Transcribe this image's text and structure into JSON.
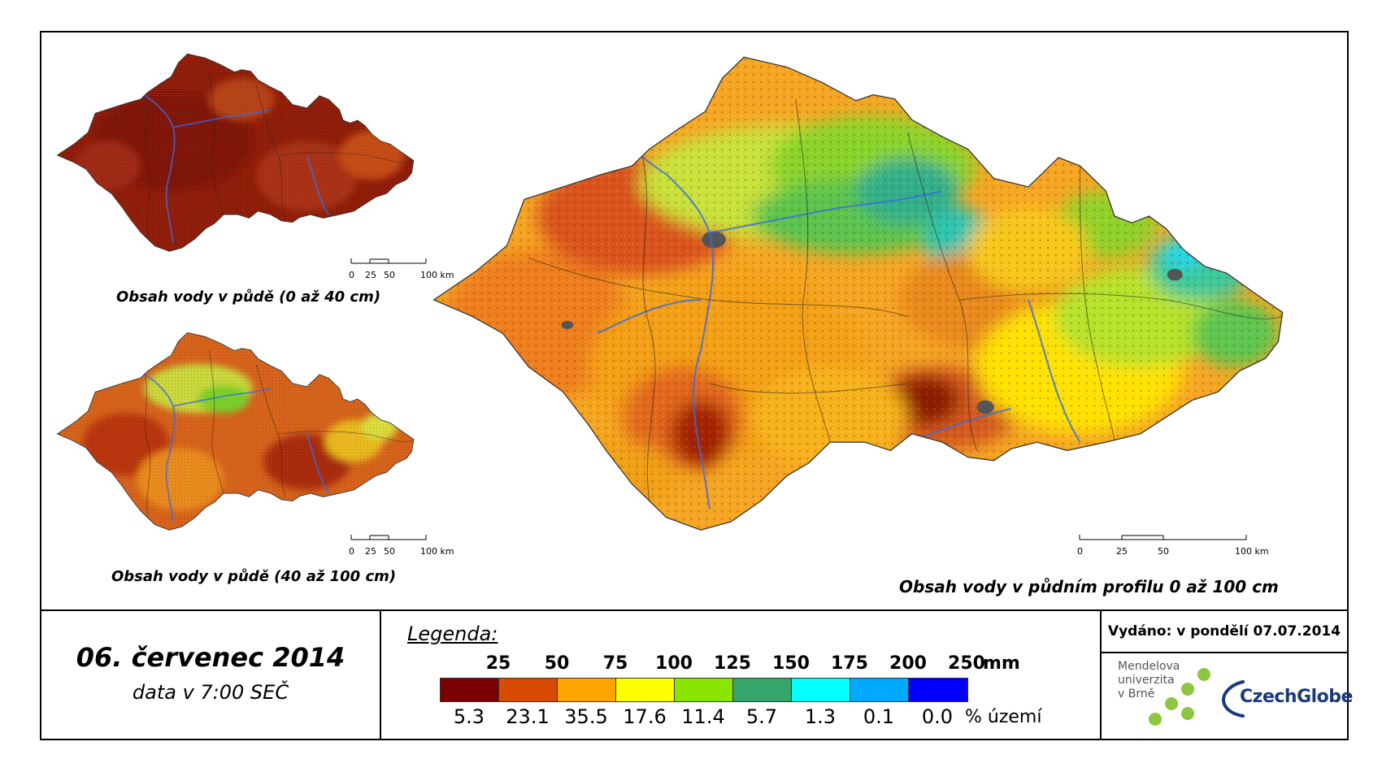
{
  "maps": {
    "top_small": {
      "title": "Obsah vody v půdě (0 až 40 cm)",
      "scale_labels": [
        "0",
        "25",
        "50",
        "100 km"
      ]
    },
    "bottom_small": {
      "title": "Obsah vody v půdě (40 až 100 cm)",
      "scale_labels": [
        "0",
        "25",
        "50",
        "100 km"
      ]
    },
    "main": {
      "title": "Obsah vody v půdním profilu 0 až 100 cm",
      "scale_labels": [
        "0",
        "25",
        "50",
        "100 km"
      ]
    }
  },
  "date": {
    "main": "06. červenec 2014",
    "sub": "data v 7:00 SEČ"
  },
  "legend": {
    "title": "Legenda:",
    "mm_unit": "mm",
    "pct_unit": "% území",
    "mm_ticks": [
      "25",
      "50",
      "75",
      "100",
      "125",
      "150",
      "175",
      "200",
      "250"
    ],
    "classes": [
      {
        "color": "#7b0000",
        "pct": "5.3"
      },
      {
        "color": "#d84a00",
        "pct": "23.1"
      },
      {
        "color": "#ffa500",
        "pct": "35.5"
      },
      {
        "color": "#ffff00",
        "pct": "17.6"
      },
      {
        "color": "#8ae600",
        "pct": "11.4"
      },
      {
        "color": "#36a56a",
        "pct": "5.7"
      },
      {
        "color": "#00ffff",
        "pct": "1.3"
      },
      {
        "color": "#00aaff",
        "pct": "0.1"
      },
      {
        "color": "#0000ff",
        "pct": "0.0"
      }
    ]
  },
  "issued": "Vydáno: v pondělí 07.07.2014",
  "logos": {
    "mendel": [
      "Mendelova",
      "univerzita",
      "v Brně"
    ],
    "czechglobe": "CzechGlobe"
  }
}
